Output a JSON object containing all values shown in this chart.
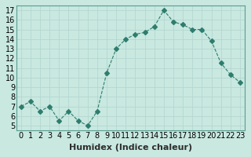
{
  "x": [
    0,
    1,
    2,
    3,
    4,
    5,
    6,
    7,
    8,
    9,
    10,
    11,
    12,
    13,
    14,
    15,
    16,
    17,
    18,
    19,
    20,
    21,
    22,
    23
  ],
  "y": [
    7,
    7.5,
    6.5,
    7,
    5.5,
    6.5,
    5.5,
    5,
    6.5,
    10.5,
    13,
    14,
    14.5,
    14.7,
    15.3,
    17,
    15.8,
    15.5,
    15,
    15,
    13.8,
    11.5,
    10.3,
    9.5
  ],
  "line_color": "#2e7d6e",
  "marker": "D",
  "marker_size": 3,
  "line_width": 0.8,
  "bg_color": "#c8e8e0",
  "grid_color": "#b0d4cc",
  "xlabel": "Humidex (Indice chaleur)",
  "ylabel": "",
  "xlim": [
    -0.5,
    23.5
  ],
  "ylim": [
    4.5,
    17.5
  ],
  "yticks": [
    5,
    6,
    7,
    8,
    9,
    10,
    11,
    12,
    13,
    14,
    15,
    16,
    17
  ],
  "xticks": [
    0,
    1,
    2,
    3,
    4,
    5,
    6,
    7,
    8,
    9,
    10,
    11,
    12,
    13,
    14,
    15,
    16,
    17,
    18,
    19,
    20,
    21,
    22,
    23
  ],
  "tick_fontsize": 7,
  "xlabel_fontsize": 8,
  "label_color": "#2e2e2e",
  "spine_color": "#5a9e90"
}
